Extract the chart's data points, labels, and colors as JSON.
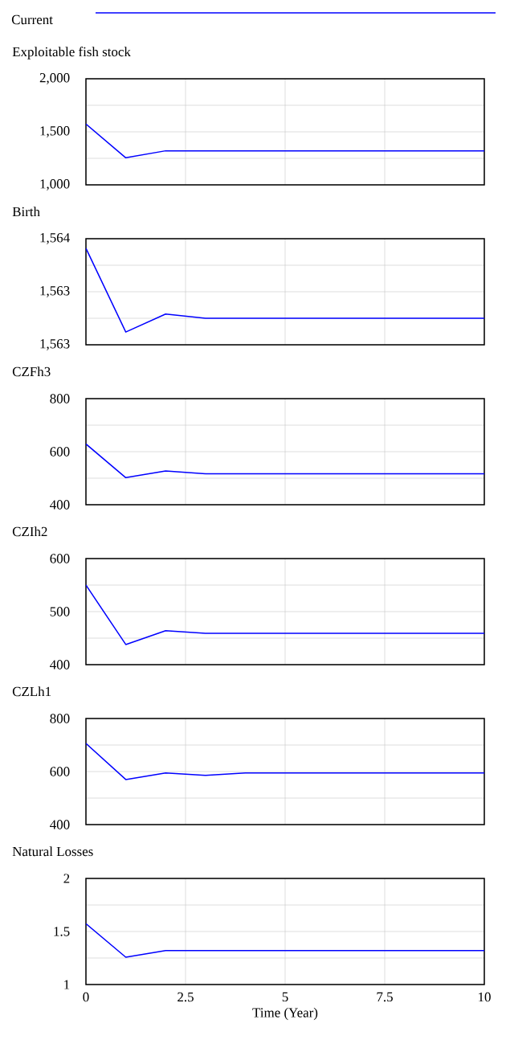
{
  "chart_data": [
    {
      "type": "line",
      "title": "Exploitable fish stock",
      "legend": "top",
      "grid": true,
      "tick_labels": "y",
      "x": [
        0,
        1,
        2,
        3,
        4,
        5,
        6,
        7,
        8,
        9,
        10
      ],
      "xlim": [
        0,
        10
      ],
      "xticks": [
        0,
        2.5,
        5,
        7.5,
        10
      ],
      "ylim": [
        1000,
        2000
      ],
      "yticks": [
        {
          "value": 1000,
          "label": "1,000"
        },
        {
          "value": 1250,
          "label": null
        },
        {
          "value": 1500,
          "label": "1,500"
        },
        {
          "value": 1750,
          "label": null
        },
        {
          "value": 2000,
          "label": "2,000"
        }
      ],
      "series": [
        {
          "name": "Current",
          "color": "#0000ff",
          "values": [
            1573,
            1255,
            1321,
            1321,
            1321,
            1321,
            1321,
            1321,
            1321,
            1321,
            1321
          ]
        }
      ]
    },
    {
      "type": "line",
      "title": "Birth",
      "grid": true,
      "tick_labels": "y",
      "x": [
        0,
        1,
        2,
        3,
        4,
        5,
        6,
        7,
        8,
        9,
        10
      ],
      "xlim": [
        0,
        10
      ],
      "xticks": [
        0,
        2.5,
        5,
        7.5,
        10
      ],
      "ylim": [
        1563,
        1564
      ],
      "yticks": [
        {
          "value": 1563,
          "label": "1,563"
        },
        {
          "value": 1563.25,
          "label": null
        },
        {
          "value": 1563.5,
          "label": "1,563"
        },
        {
          "value": 1563.75,
          "label": null
        },
        {
          "value": 1564,
          "label": "1,564"
        }
      ],
      "series": [
        {
          "color": "#0000ff",
          "values": [
            1563.91,
            1563.12,
            1563.29,
            1563.25,
            1563.25,
            1563.25,
            1563.25,
            1563.25,
            1563.25,
            1563.25,
            1563.25
          ]
        }
      ]
    },
    {
      "type": "line",
      "title": "CZFh3",
      "grid": true,
      "tick_labels": "y",
      "x": [
        0,
        1,
        2,
        3,
        4,
        5,
        6,
        7,
        8,
        9,
        10
      ],
      "xlim": [
        0,
        10
      ],
      "xticks": [
        0,
        2.5,
        5,
        7.5,
        10
      ],
      "ylim": [
        400,
        800
      ],
      "yticks": [
        400,
        {
          "value": 500,
          "label": null
        },
        600,
        {
          "value": 700,
          "label": null
        },
        800
      ],
      "series": [
        {
          "color": "#0000ff",
          "values": [
            629,
            502,
            527,
            517,
            517,
            517,
            517,
            517,
            517,
            517,
            517
          ]
        }
      ]
    },
    {
      "type": "line",
      "title": "CZIh2",
      "grid": true,
      "tick_labels": "y",
      "x": [
        0,
        1,
        2,
        3,
        4,
        5,
        6,
        7,
        8,
        9,
        10
      ],
      "xlim": [
        0,
        10
      ],
      "xticks": [
        0,
        2.5,
        5,
        7.5,
        10
      ],
      "ylim": [
        400,
        600
      ],
      "yticks": [
        400,
        {
          "value": 450,
          "label": null
        },
        500,
        {
          "value": 550,
          "label": null
        },
        600
      ],
      "series": [
        {
          "color": "#0000ff",
          "values": [
            550,
            438,
            464,
            459,
            459,
            459,
            459,
            459,
            459,
            459,
            459
          ]
        }
      ]
    },
    {
      "type": "line",
      "title": "CZLh1",
      "grid": true,
      "tick_labels": "y",
      "x": [
        0,
        1,
        2,
        3,
        4,
        5,
        6,
        7,
        8,
        9,
        10
      ],
      "xlim": [
        0,
        10
      ],
      "xticks": [
        0,
        2.5,
        5,
        7.5,
        10
      ],
      "ylim": [
        400,
        800
      ],
      "yticks": [
        400,
        {
          "value": 500,
          "label": null
        },
        600,
        {
          "value": 700,
          "label": null
        },
        800
      ],
      "series": [
        {
          "color": "#0000ff",
          "values": [
            706,
            570,
            595,
            586,
            595,
            595,
            595,
            595,
            595,
            595,
            595
          ]
        }
      ]
    },
    {
      "type": "line",
      "title": "Natural Losses",
      "xlabel": "Time (Year)",
      "grid": true,
      "x": [
        0,
        1,
        2,
        3,
        4,
        5,
        6,
        7,
        8,
        9,
        10
      ],
      "xlim": [
        0,
        10
      ],
      "xticks": [
        0,
        2.5,
        5,
        7.5,
        10
      ],
      "ylim": [
        1,
        2
      ],
      "yticks": [
        1,
        {
          "value": 1.25,
          "label": null
        },
        1.5,
        {
          "value": 1.75,
          "label": null
        },
        2
      ],
      "series": [
        {
          "color": "#0000ff",
          "values": [
            1.573,
            1.258,
            1.321,
            1.321,
            1.321,
            1.321,
            1.321,
            1.321,
            1.321,
            1.321,
            1.321
          ]
        }
      ]
    }
  ]
}
